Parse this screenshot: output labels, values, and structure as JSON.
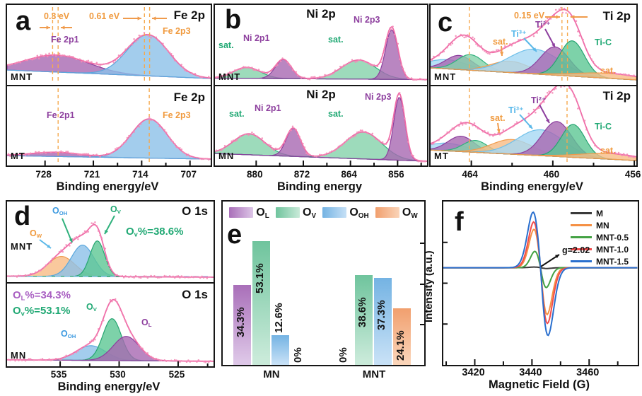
{
  "colors": {
    "envelope_pink": "#ef6da8",
    "scatter_pink": "#f489b6",
    "purple_fill": "#a868b2",
    "purple_stroke": "#8d3f9e",
    "blue_fill": "#8cc0e8",
    "blue_stroke": "#59a7dd",
    "sky_fill": "#a6d8f4",
    "sky_stroke": "#6fc0ea",
    "green_fill": "#85d2aa",
    "green_stroke": "#2fb17c",
    "tgreen_fill": "#5cc794",
    "tgreen_stroke": "#26a571",
    "orange_fill": "#f7bc84",
    "orange_stroke": "#f09b4c",
    "dashed_guide": "#f6a94e",
    "axis_black": "#111111"
  },
  "panels": {
    "a": {
      "letter": "a",
      "xlabel": "Binding energy/eV",
      "xticks": [
        "728",
        "721",
        "714",
        "707"
      ],
      "top": {
        "sample": "MNT",
        "title": "Fe 2p",
        "ann_left": "0.3 eV",
        "ann_right": "0.61 eV",
        "labels": {
          "p1": "Fe 2p1",
          "p3": "Fe 2p3"
        }
      },
      "bot": {
        "sample": "MT",
        "title": "Fe 2p",
        "labels": {
          "p1": "Fe 2p1",
          "p3": "Fe 2p3"
        }
      }
    },
    "b": {
      "letter": "b",
      "xlabel": "Binding energy",
      "xticks": [
        "880",
        "872",
        "864",
        "856"
      ],
      "top": {
        "sample": "MNT",
        "title": "Ni 2p",
        "labels": {
          "sat1": "sat.",
          "p1": "Ni 2p1",
          "sat2": "sat.",
          "p3": "Ni 2p3"
        }
      },
      "bot": {
        "sample": "MN",
        "title": "Ni 2p",
        "labels": {
          "sat1": "sat.",
          "p1": "Ni 2p1",
          "sat2": "sat.",
          "p3": "Ni 2p3"
        }
      }
    },
    "c": {
      "letter": "c",
      "xlabel": "Binding energy/eV",
      "xticks": [
        "464",
        "460",
        "456"
      ],
      "top": {
        "sample": "MNT",
        "title": "Ti 2p",
        "ann": "0.15 eV",
        "labels": {
          "ti2": "Ti²⁺",
          "ti3": "Ti³⁺",
          "sat1": "sat.",
          "tic": "Ti-C",
          "sat2": "sat."
        }
      },
      "bot": {
        "sample": "MT",
        "title": "Ti 2p",
        "labels": {
          "ti2": "Ti²⁺",
          "ti3": "Ti³⁺",
          "sat1": "sat.",
          "tic": "Ti-C",
          "sat2": "sat."
        }
      }
    },
    "d": {
      "letter": "d",
      "xlabel": "Binding energy/eV",
      "xticks": [
        "535",
        "530",
        "525"
      ],
      "top": {
        "sample": "MNT",
        "title": "O 1s",
        "labels": {
          "o_oh": {
            "b": "O",
            "s": "OH"
          },
          "o_v": {
            "b": "O",
            "s": "V"
          },
          "o_w": {
            "b": "O",
            "s": "W"
          }
        },
        "stat": {
          "b": "O",
          "s": "v",
          "r": "%=38.6%"
        }
      },
      "bot": {
        "sample": "MN",
        "title": "O 1s",
        "labels": {
          "o_v": {
            "b": "O",
            "s": "V"
          },
          "o_oh": {
            "b": "O",
            "s": "OH"
          },
          "o_l": {
            "b": "O",
            "s": "L"
          }
        },
        "stat1": {
          "b": "O",
          "s": "L",
          "r": "%=34.3%"
        },
        "stat2": {
          "b": "O",
          "s": "v",
          "r": "%=53.1%"
        }
      }
    },
    "e": {
      "letter": "e"
    },
    "f": {
      "letter": "f",
      "annotation": "g=2.02",
      "xlabel": "Magnetic Field (G)",
      "ylabel": "Intensity (a.u.)",
      "xticks": [
        "3420",
        "3440",
        "3460"
      ]
    }
  },
  "chart_data": {
    "spectra": {
      "a": {
        "type": "area",
        "region": "Fe 2p",
        "xdom": [
          733.5,
          704
        ],
        "xticks": [
          728,
          721,
          714,
          707
        ],
        "subs": [
          {
            "id": "a_top",
            "sample": "MNT",
            "seed": 11,
            "base": [
              0.17,
              0.05
            ],
            "peaks": [
              {
                "name": "Fe 2p1",
                "c": 726.3,
                "s": 4.6,
                "h": 0.24,
                "color": "purple"
              },
              {
                "name": "Fe 2p3",
                "c": 713.1,
                "s": 3.0,
                "h": 0.58,
                "color": "blue"
              }
            ],
            "guides": [
              726.9,
              726.1,
              713.6,
              712.85
            ]
          },
          {
            "id": "a_bot",
            "sample": "MT",
            "seed": 12,
            "base": [
              0.1,
              0.05
            ],
            "peaks": [
              {
                "name": "Fe 2p1",
                "c": 726.4,
                "s": 3.6,
                "h": 0.06,
                "color": "purple"
              },
              {
                "name": "Fe 2p3",
                "c": 712.9,
                "s": 2.6,
                "h": 0.56,
                "color": "blue"
              }
            ],
            "guides": [
              726.1,
              712.9
            ],
            "ticks": true
          }
        ]
      },
      "b": {
        "type": "area",
        "region": "Ni 2p",
        "xdom": [
          887,
          851
        ],
        "xticks": [
          880,
          872,
          864,
          856
        ],
        "subs": [
          {
            "id": "b_top",
            "sample": "MNT",
            "seed": 21,
            "base": [
              0.055,
              0.035
            ],
            "peaks": [
              {
                "name": "sat.",
                "c": 881.6,
                "s": 2.3,
                "h": 0.155,
                "color": "green"
              },
              {
                "name": "Ni 2p1",
                "c": 875.4,
                "s": 1.35,
                "h": 0.27,
                "color": "purple"
              },
              {
                "name": "sat.",
                "c": 862.6,
                "s": 2.9,
                "h": 0.27,
                "color": "green"
              },
              {
                "name": "Ni 2p3",
                "c": 857.0,
                "s": 1.05,
                "h": 0.7,
                "color": "purple"
              }
            ]
          },
          {
            "id": "b_bot",
            "sample": "MN",
            "seed": 22,
            "base": [
              0.13,
              0.02
            ],
            "peaks": [
              {
                "name": "sat.",
                "c": 881.2,
                "s": 2.7,
                "h": 0.3,
                "color": "green"
              },
              {
                "name": "Ni 2p1",
                "c": 873.7,
                "s": 1.2,
                "h": 0.4,
                "color": "purple"
              },
              {
                "name": "sat.",
                "c": 861.8,
                "s": 3.1,
                "h": 0.385,
                "color": "green"
              },
              {
                "name": "Ni 2p3",
                "c": 855.7,
                "s": 0.95,
                "h": 0.9,
                "color": "purple"
              }
            ],
            "ticks": true
          }
        ]
      },
      "c": {
        "type": "area",
        "region": "Ti 2p",
        "xdom": [
          466,
          455.9
        ],
        "xticks": [
          464,
          460,
          456
        ],
        "subs": [
          {
            "id": "c_top",
            "sample": "MNT",
            "seed": 31,
            "base": [
              0.2,
              0.03
            ],
            "peaks": [
              {
                "name": "sat.",
                "c": 465.2,
                "s": 1.0,
                "h": 0.13,
                "color": "sky"
              },
              {
                "name": "Ti2p1-a",
                "c": 464.6,
                "s": 0.65,
                "h": 0.2,
                "color": "purple"
              },
              {
                "name": "Ti2p1-b",
                "c": 464.05,
                "s": 0.65,
                "h": 0.22,
                "color": "green"
              },
              {
                "name": "sat.",
                "c": 462.1,
                "s": 0.95,
                "h": 0.16,
                "color": "orange"
              },
              {
                "name": "Ti3+",
                "c": 460.9,
                "s": 1.25,
                "h": 0.35,
                "color": "sky"
              },
              {
                "name": "Ti2+",
                "c": 459.9,
                "s": 0.7,
                "h": 0.4,
                "color": "purple"
              },
              {
                "name": "Ti-C",
                "c": 459.05,
                "s": 0.6,
                "h": 0.5,
                "color": "tgreen"
              },
              {
                "name": "sat.",
                "c": 457.3,
                "s": 1.6,
                "h": 0.07,
                "color": "orange"
              }
            ],
            "guides": [
              464.1,
              459.55,
              459.28
            ]
          },
          {
            "id": "c_bot",
            "sample": "MT",
            "seed": 32,
            "base": [
              0.18,
              0.03
            ],
            "peaks": [
              {
                "name": "sat.",
                "c": 465.2,
                "s": 0.95,
                "h": 0.11,
                "color": "sky"
              },
              {
                "name": "Ti2p1-a",
                "c": 464.5,
                "s": 0.65,
                "h": 0.22,
                "color": "purple"
              },
              {
                "name": "Ti2p1-b",
                "c": 463.8,
                "s": 0.6,
                "h": 0.17,
                "color": "green"
              },
              {
                "name": "sat.",
                "c": 462.0,
                "s": 1.0,
                "h": 0.21,
                "color": "orange"
              },
              {
                "name": "Ti3+",
                "c": 460.6,
                "s": 1.15,
                "h": 0.37,
                "color": "sky"
              },
              {
                "name": "Ti2+",
                "c": 459.8,
                "s": 0.72,
                "h": 0.5,
                "color": "purple"
              },
              {
                "name": "Ti-C",
                "c": 459.0,
                "s": 0.58,
                "h": 0.47,
                "color": "tgreen"
              },
              {
                "name": "sat.",
                "c": 457.2,
                "s": 1.5,
                "h": 0.08,
                "color": "orange"
              }
            ],
            "guides": [
              464.1,
              459.3
            ],
            "ticks": true
          }
        ]
      },
      "d": {
        "type": "area",
        "region": "O 1s",
        "xdom": [
          539.5,
          522
        ],
        "xticks": [
          535,
          530,
          525
        ],
        "subs": [
          {
            "id": "d_top",
            "sample": "MNT",
            "seed": 41,
            "base": [
              0.045,
              0.03
            ],
            "hguide": 0.04,
            "peaks": [
              {
                "name": "O_W",
                "c": 534.9,
                "s": 1.15,
                "h": 0.28,
                "color": "orange"
              },
              {
                "name": "O_OH",
                "c": 533.1,
                "s": 0.95,
                "h": 0.44,
                "color": "blue"
              },
              {
                "name": "O_V",
                "c": 531.85,
                "s": 0.62,
                "h": 0.5,
                "color": "tgreen"
              }
            ]
          },
          {
            "id": "d_bot",
            "sample": "MN",
            "seed": 42,
            "base": [
              0.05,
              0.03
            ],
            "peaks": [
              {
                "name": "O_OH",
                "c": 532.4,
                "s": 1.25,
                "h": 0.2,
                "color": "blue"
              },
              {
                "name": "O_V",
                "c": 530.6,
                "s": 0.78,
                "h": 0.57,
                "color": "tgreen"
              },
              {
                "name": "O_L",
                "c": 529.4,
                "s": 1.1,
                "h": 0.33,
                "color": "purple"
              }
            ],
            "ticks": true
          }
        ]
      }
    },
    "bars": {
      "type": "bar",
      "groups": [
        "MN",
        "MNT"
      ],
      "unit": "%",
      "ylabel": "Intensity (a.u.)",
      "series": [
        {
          "name": {
            "b": "O",
            "s": "L"
          },
          "values": [
            34.3,
            0
          ],
          "labels": [
            "34.3%",
            "0%"
          ],
          "color": [
            "#a96fb9",
            "#ddc6e7"
          ]
        },
        {
          "name": {
            "b": "O",
            "s": "V"
          },
          "values": [
            53.1,
            38.6
          ],
          "labels": [
            "53.1%",
            "38.6%"
          ],
          "color": [
            "#6fc49d",
            "#c9ead9"
          ]
        },
        {
          "name": {
            "b": "O",
            "s": "OH"
          },
          "values": [
            12.6,
            37.3
          ],
          "labels": [
            "12.6%",
            "37.3%"
          ],
          "color": [
            "#74b3e3",
            "#c6e0f6"
          ]
        },
        {
          "name": {
            "b": "O",
            "s": "W"
          },
          "values": [
            0,
            24.1
          ],
          "labels": [
            "0%",
            "24.1%"
          ],
          "color": [
            "#f19f6e",
            "#fad4b8"
          ]
        }
      ]
    },
    "epr": {
      "type": "line",
      "x_range": [
        3409,
        3477
      ],
      "center": 3443,
      "xticks": [
        3420,
        3440,
        3460
      ],
      "zero_frac": 0.405,
      "asym": 1.22,
      "annotation": "g=2.02",
      "g_value": 2.02,
      "xlabel": "Magnetic Field (G)",
      "ylabel": "Intensity (a.u.)",
      "series": [
        {
          "name": "M",
          "color": "#3a3a3a",
          "amp": 0.004,
          "w": 2.2
        },
        {
          "name": "MN",
          "color": "#f59044",
          "amp": 0.235,
          "w": 2.3
        },
        {
          "name": "MNT-0.5",
          "color": "#44a244",
          "amp": 0.1,
          "w": 2.0
        },
        {
          "name": "MNT-1.0",
          "color": "#f24b4b",
          "amp": 0.28,
          "w": 2.4
        },
        {
          "name": "MNT-1.5",
          "color": "#2a6fce",
          "amp": 0.34,
          "w": 2.6
        }
      ]
    }
  }
}
